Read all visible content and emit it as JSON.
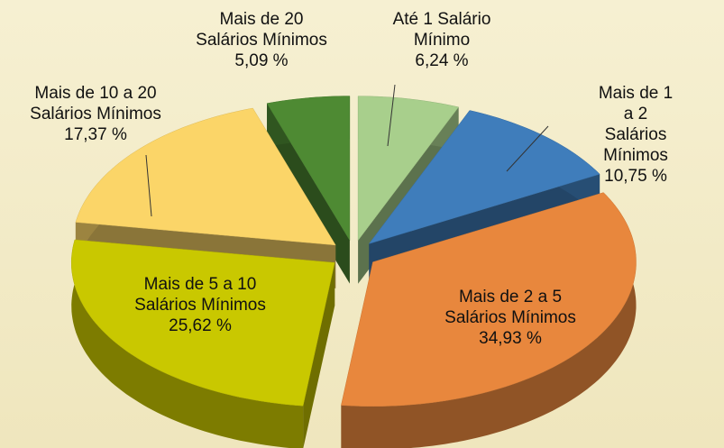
{
  "chart_data": {
    "type": "pie3d",
    "categories": [
      "Até 1 Salário\nMínimo",
      "Mais de 1 a 2\nSalários Mínimos",
      "Mais de 2 a 5\nSalários Mínimos",
      "Mais de 5 a 10\nSalários Mínimos",
      "Mais de 10 a 20\nSalários Mínimos",
      "Mais de 20\nSalários Mínimos"
    ],
    "values": [
      6.24,
      10.75,
      34.93,
      25.62,
      17.37,
      5.09
    ],
    "value_labels": [
      "6,24 %",
      "10,75 %",
      "34,93 %",
      "25,62 %",
      "17,37 %",
      "5,09 %"
    ],
    "colors": [
      "#a8cf8c",
      "#3f7dbb",
      "#e8873d",
      "#c9c800",
      "#fbd568",
      "#4e8a33"
    ]
  }
}
